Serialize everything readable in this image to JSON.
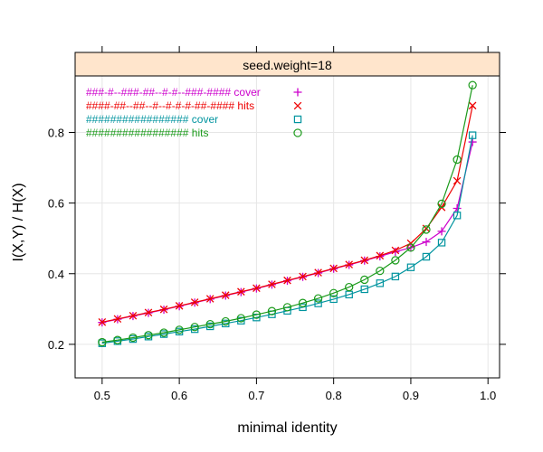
{
  "chart_data": {
    "type": "line",
    "panel_title": "seed.weight=18",
    "xlabel": "minimal identity",
    "ylabel": "I(X,Y) / H(X)",
    "xlim": [
      0.465,
      1.015
    ],
    "ylim": [
      0.105,
      0.96
    ],
    "x_ticks": [
      0.5,
      0.6,
      0.7,
      0.8,
      0.9,
      1.0
    ],
    "x_tick_labels": [
      "0.5",
      "0.6",
      "0.7",
      "0.8",
      "0.9",
      "1.0"
    ],
    "y_ticks": [
      0.2,
      0.4,
      0.6,
      0.8
    ],
    "y_tick_labels": [
      "0.2",
      "0.4",
      "0.6",
      "0.8"
    ],
    "grid": true,
    "legend_position": "top-left",
    "x": [
      0.5,
      0.52,
      0.54,
      0.56,
      0.58,
      0.6,
      0.62,
      0.64,
      0.66,
      0.68,
      0.7,
      0.72,
      0.74,
      0.76,
      0.78,
      0.8,
      0.82,
      0.84,
      0.86,
      0.88,
      0.9,
      0.92,
      0.94,
      0.96,
      0.98
    ],
    "series": [
      {
        "name": "###-#--###-##--#-#--###-#### cover",
        "color": "#cc00cc",
        "marker": "plus",
        "values": [
          0.262,
          0.271,
          0.28,
          0.289,
          0.298,
          0.308,
          0.318,
          0.328,
          0.338,
          0.348,
          0.358,
          0.369,
          0.38,
          0.391,
          0.402,
          0.414,
          0.425,
          0.437,
          0.449,
          0.462,
          0.474,
          0.49,
          0.52,
          0.585,
          0.773
        ]
      },
      {
        "name": "####-##--##--#--#-#-#-##-#### hits",
        "color": "#ee0000",
        "marker": "cross",
        "values": [
          0.263,
          0.272,
          0.281,
          0.29,
          0.299,
          0.309,
          0.319,
          0.329,
          0.339,
          0.349,
          0.359,
          0.37,
          0.381,
          0.392,
          0.403,
          0.415,
          0.426,
          0.438,
          0.451,
          0.466,
          0.486,
          0.528,
          0.588,
          0.663,
          0.876
        ]
      },
      {
        "name": "################# cover",
        "color": "#00949f",
        "marker": "square",
        "values": [
          0.203,
          0.209,
          0.215,
          0.222,
          0.229,
          0.236,
          0.243,
          0.251,
          0.259,
          0.267,
          0.276,
          0.285,
          0.295,
          0.305,
          0.316,
          0.328,
          0.341,
          0.356,
          0.373,
          0.392,
          0.418,
          0.448,
          0.488,
          0.565,
          0.792
        ]
      },
      {
        "name": "################# hits",
        "color": "#1a9a1a",
        "marker": "circle",
        "values": [
          0.206,
          0.212,
          0.219,
          0.226,
          0.233,
          0.241,
          0.249,
          0.257,
          0.265,
          0.274,
          0.284,
          0.294,
          0.305,
          0.317,
          0.33,
          0.345,
          0.362,
          0.383,
          0.408,
          0.438,
          0.474,
          0.525,
          0.598,
          0.723,
          0.934
        ]
      }
    ]
  }
}
